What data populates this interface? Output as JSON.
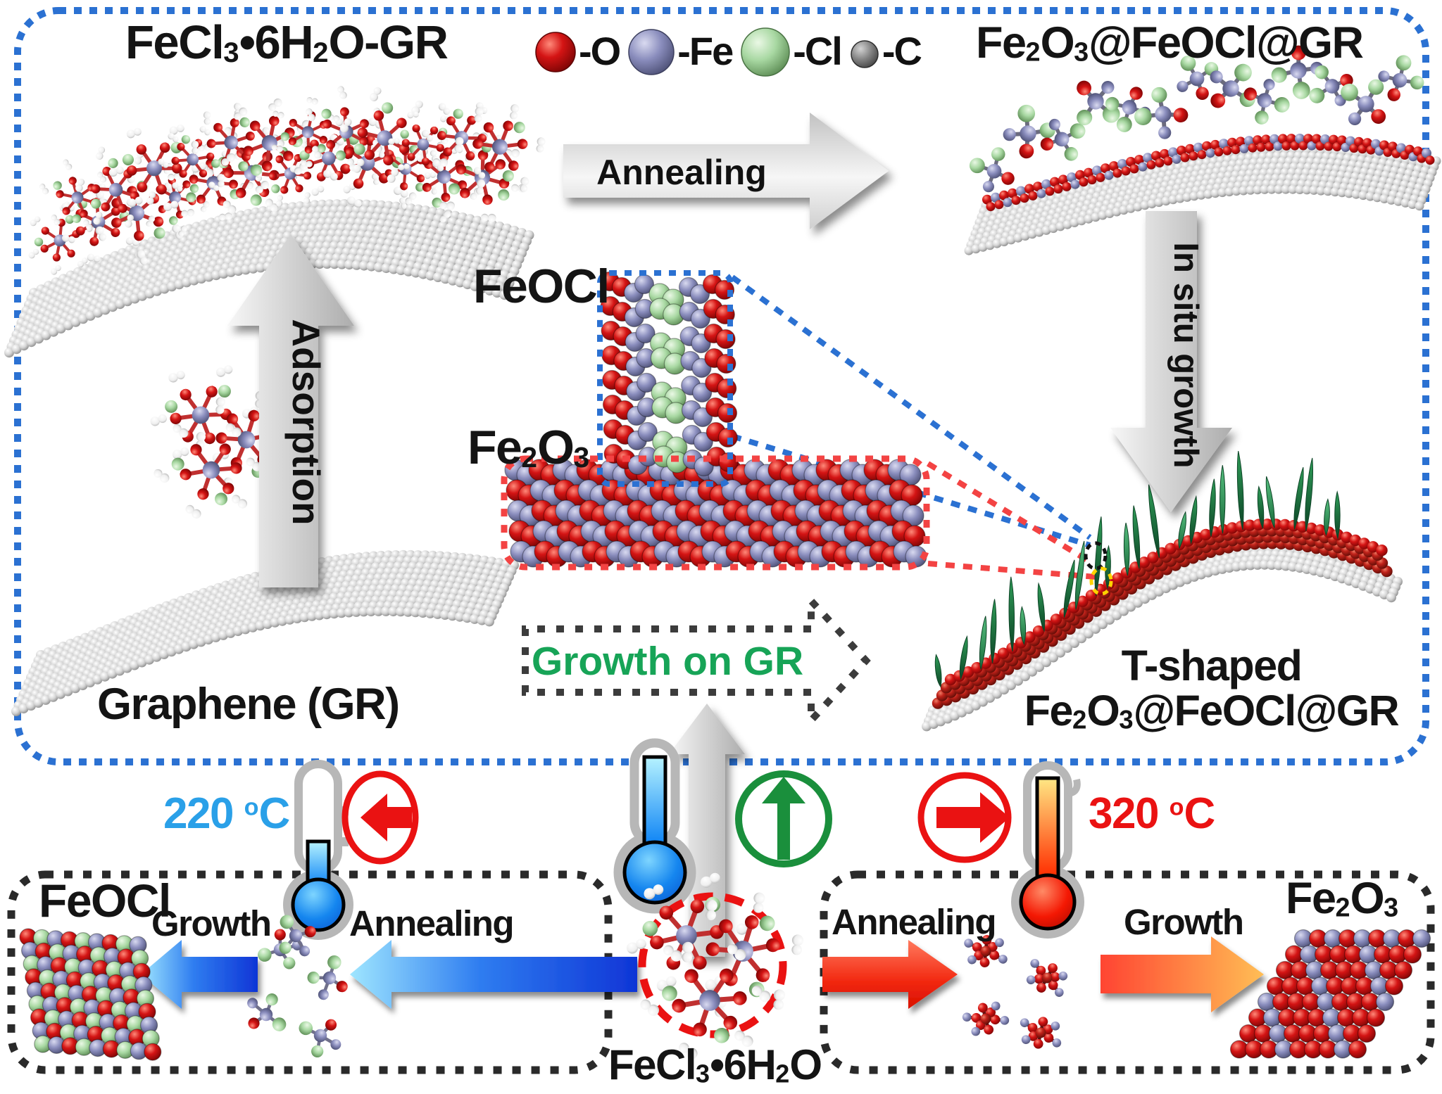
{
  "colors": {
    "frame_blue": "#2b71d2",
    "accent_red": "#ea1212",
    "temp_cold_text": "#2aa0e8",
    "temp_hot_text": "#ea1212",
    "green_text": "#17a457",
    "green_icon": "#1a8f3c",
    "atom_o": "#c81212",
    "atom_fe": "#8487ba",
    "atom_cl": "#a6d3a0",
    "atom_c": "#7d7d7d"
  },
  "icons": {
    "direction_left": "red circle with left arrow",
    "direction_up": "green circle with up arrow",
    "direction_right": "red circle with right arrow",
    "thermometer_cold": "blue low-temperature thermometer",
    "thermometer_hot": "red high-temperature thermometer"
  },
  "top_row": {
    "title_left": [
      {
        "t": "FeCl"
      },
      {
        "t": "3",
        "sub": true
      },
      {
        "t": "•6H"
      },
      {
        "t": "2",
        "sub": true
      },
      {
        "t": "O-GR"
      }
    ],
    "title_right": [
      {
        "t": "Fe"
      },
      {
        "t": "2",
        "sub": true
      },
      {
        "t": "O"
      },
      {
        "t": "3",
        "sub": true
      },
      {
        "t": "@FeOCl@GR"
      }
    ],
    "legend": [
      {
        "label": "-O",
        "atom": "O"
      },
      {
        "label": "-Fe",
        "atom": "Fe"
      },
      {
        "label": "-Cl",
        "atom": "Cl"
      },
      {
        "label": "-C",
        "atom": "C"
      }
    ]
  },
  "process_arrows": {
    "annealing": "Annealing",
    "adsorption": "Adsorption",
    "in_situ_growth": "In situ growth",
    "growth_on_gr": "Growth on GR"
  },
  "center": {
    "feocl_label": "FeOCl",
    "fe2o3_label": [
      {
        "t": "Fe"
      },
      {
        "t": "2",
        "sub": true
      },
      {
        "t": "O"
      },
      {
        "t": "3",
        "sub": true
      }
    ]
  },
  "main_labels": {
    "graphene": "Graphene (GR)",
    "t_shaped_line1": "T-shaped",
    "t_shaped_line2": [
      {
        "t": "Fe"
      },
      {
        "t": "2",
        "sub": true
      },
      {
        "t": "O"
      },
      {
        "t": "3",
        "sub": true
      },
      {
        "t": "@FeOCl@GR"
      }
    ]
  },
  "bottom_panel": {
    "temp_left": [
      {
        "t": "220 "
      },
      {
        "t": "o",
        "sup": true
      },
      {
        "t": "C"
      }
    ],
    "temp_right": [
      {
        "t": "320 "
      },
      {
        "t": "o",
        "sup": true
      },
      {
        "t": "C"
      }
    ],
    "left_box": {
      "product": "FeOCl",
      "step_growth": "Growth",
      "step_annealing": "Annealing"
    },
    "right_box": {
      "step_annealing": "Annealing",
      "step_growth": "Growth",
      "product": [
        {
          "t": "Fe"
        },
        {
          "t": "2",
          "sub": true
        },
        {
          "t": "O"
        },
        {
          "t": "3",
          "sub": true
        }
      ]
    },
    "precursor": [
      {
        "t": "FeCl"
      },
      {
        "t": "3",
        "sub": true
      },
      {
        "t": "•6H"
      },
      {
        "t": "2",
        "sub": true
      },
      {
        "t": "O"
      }
    ]
  }
}
